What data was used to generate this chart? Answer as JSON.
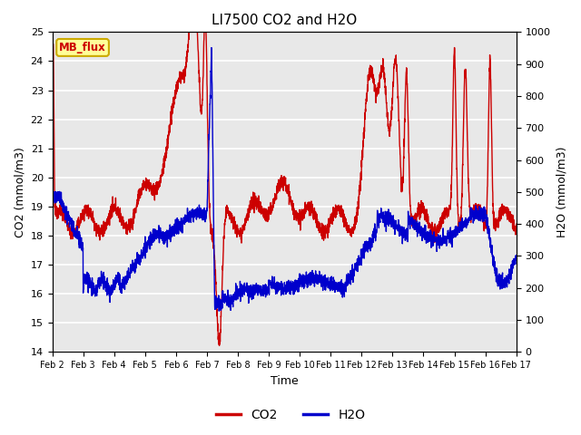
{
  "title": "LI7500 CO2 and H2O",
  "xlabel": "Time",
  "ylabel_left": "CO2 (mmol/m3)",
  "ylabel_right": "H2O (mmol/m3)",
  "ylim_left": [
    14.0,
    25.0
  ],
  "ylim_right": [
    0,
    1000
  ],
  "yticks_left": [
    14.0,
    15.0,
    16.0,
    17.0,
    18.0,
    19.0,
    20.0,
    21.0,
    22.0,
    23.0,
    24.0,
    25.0
  ],
  "yticks_right": [
    0,
    100,
    200,
    300,
    400,
    500,
    600,
    700,
    800,
    900,
    1000
  ],
  "xtick_labels": [
    "Feb 2",
    "Feb 3",
    "Feb 4",
    "Feb 5",
    "Feb 6",
    "Feb 7",
    "Feb 8",
    "Feb 9",
    "Feb 10",
    "Feb 11",
    "Feb 12",
    "Feb 13",
    "Feb 14",
    "Feb 15",
    "Feb 16",
    "Feb 17"
  ],
  "co2_color": "#cc0000",
  "h2o_color": "#0000cc",
  "line_width": 1.0,
  "plot_bg_color": "#e8e8e8",
  "watermark_text": "MB_flux",
  "watermark_fg": "#cc0000",
  "watermark_bg": "#ffff99",
  "legend_co2": "CO2",
  "legend_h2o": "H2O"
}
